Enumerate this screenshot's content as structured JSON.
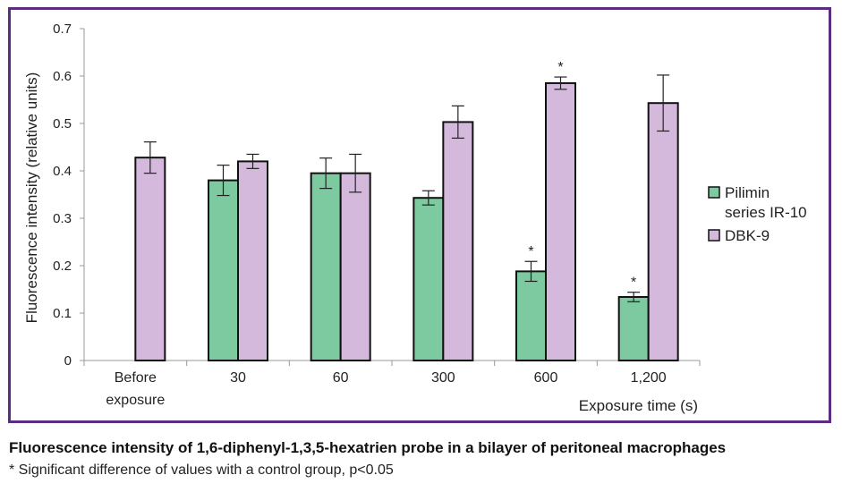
{
  "chart_data": {
    "type": "bar",
    "xlabel": "Exposure time (s)",
    "ylabel": "Fluorescence intensity (relative units)",
    "ylim": [
      0,
      0.7
    ],
    "yticks": [
      "0",
      "0.1",
      "0.2",
      "0.3",
      "0.4",
      "0.5",
      "0.6",
      "0.7"
    ],
    "categories": [
      [
        "Before",
        "exposure"
      ],
      [
        "30"
      ],
      [
        "60"
      ],
      [
        "300"
      ],
      [
        "600"
      ],
      [
        "1,200"
      ]
    ],
    "series": [
      {
        "name": "Pilimin series IR-10",
        "legend_lines": [
          "Pilimin",
          "series IR-10"
        ],
        "color": "#7dcaa0",
        "values": [
          null,
          0.38,
          0.395,
          0.343,
          0.188,
          0.134
        ],
        "errors": [
          null,
          0.032,
          0.032,
          0.015,
          0.021,
          0.01
        ],
        "significant": [
          false,
          false,
          false,
          false,
          true,
          true
        ]
      },
      {
        "name": "DBK-9",
        "legend_lines": [
          "DBK-9"
        ],
        "color": "#d4b9dc",
        "values": [
          0.428,
          0.42,
          0.395,
          0.503,
          0.585,
          0.543
        ],
        "errors": [
          0.033,
          0.015,
          0.04,
          0.034,
          0.013,
          0.059
        ],
        "significant": [
          false,
          false,
          false,
          false,
          true,
          false
        ]
      }
    ],
    "significance_marker": "*",
    "legend_position": "right"
  },
  "caption": {
    "title": "Fluorescence intensity of 1,6-diphenyl-1,3,5-hexatrien probe in a bilayer of peritoneal macrophages",
    "note": "* Significant difference of values with a control group, p<0.05"
  },
  "colors": {
    "frame": "#5b2d82",
    "axis": "#999999"
  }
}
